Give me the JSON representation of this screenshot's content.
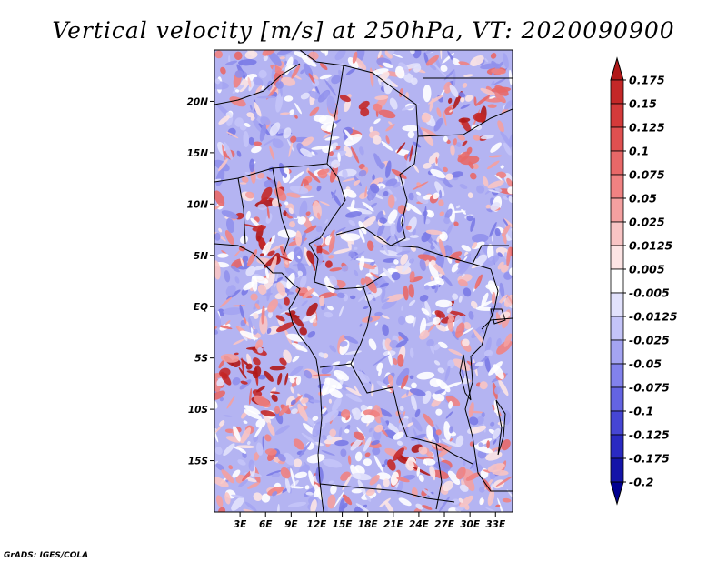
{
  "title": "Vertical velocity [m/s] at 250hPa, VT: 2020090900",
  "credit": "GrADS: IGES/COLA",
  "map": {
    "lon_range": [
      0,
      35
    ],
    "lat_range": [
      -20,
      25
    ],
    "lat_ticks": [
      {
        "value": 20,
        "label": "20N"
      },
      {
        "value": 15,
        "label": "15N"
      },
      {
        "value": 10,
        "label": "10N"
      },
      {
        "value": 5,
        "label": "5N"
      },
      {
        "value": 0,
        "label": "EQ"
      },
      {
        "value": -5,
        "label": "5S"
      },
      {
        "value": -10,
        "label": "10S"
      },
      {
        "value": -15,
        "label": "15S"
      }
    ],
    "lon_ticks": [
      {
        "value": 3,
        "label": "3E"
      },
      {
        "value": 6,
        "label": "6E"
      },
      {
        "value": 9,
        "label": "9E"
      },
      {
        "value": 12,
        "label": "12E"
      },
      {
        "value": 15,
        "label": "15E"
      },
      {
        "value": 18,
        "label": "18E"
      },
      {
        "value": 21,
        "label": "21E"
      },
      {
        "value": 24,
        "label": "24E"
      },
      {
        "value": 27,
        "label": "27E"
      },
      {
        "value": 30,
        "label": "30E"
      },
      {
        "value": 33,
        "label": "33E"
      }
    ]
  },
  "colorbar": {
    "labels": [
      "0.175",
      "0.15",
      "0.125",
      "0.1",
      "0.075",
      "0.05",
      "0.025",
      "0.0125",
      "0.005",
      "-0.005",
      "-0.0125",
      "-0.025",
      "-0.05",
      "-0.075",
      "-0.1",
      "-0.125",
      "-0.175",
      "-0.2"
    ],
    "colors": [
      "#b01818",
      "#c42828",
      "#d43a3a",
      "#e05050",
      "#e86868",
      "#f08282",
      "#f4a0a0",
      "#f8c4c4",
      "#fce4e4",
      "#ffffff",
      "#e2e2fc",
      "#c4c4f8",
      "#a4a4f2",
      "#8282ec",
      "#6464e2",
      "#4646d4",
      "#2a2ac2",
      "#1414a8",
      "#000090"
    ]
  }
}
